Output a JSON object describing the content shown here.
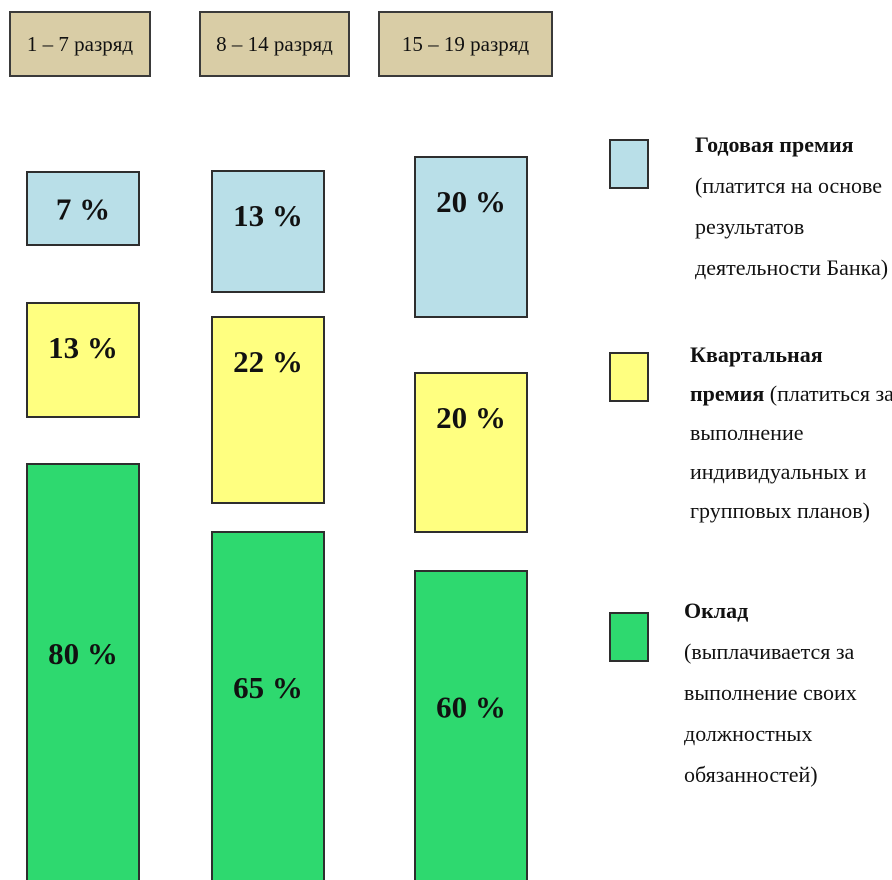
{
  "chart_data": {
    "type": "bar",
    "stacked": true,
    "categories": [
      "1 – 7 разряд",
      "8 – 14 разряд",
      "15 – 19 разряд"
    ],
    "series": [
      {
        "key": "salary",
        "name": "Оклад",
        "legend_lines": [
          [
            {
              "text": "Оклад",
              "bold": true
            }
          ],
          [
            {
              "text": "(выплачивается за",
              "bold": false
            }
          ],
          [
            {
              "text": "выполнение своих",
              "bold": false
            }
          ],
          [
            {
              "text": "должностных",
              "bold": false
            }
          ],
          [
            {
              "text": "обязанностей)",
              "bold": false
            }
          ]
        ],
        "color": "#2ed96f",
        "values": [
          80,
          65,
          60
        ],
        "labels": [
          "80 %",
          "65 %",
          "60 %"
        ]
      },
      {
        "key": "quarterly",
        "name": "Квартальная премия",
        "legend_lines": [
          [
            {
              "text": "Квартальная",
              "bold": true
            }
          ],
          [
            {
              "text": "премия",
              "bold": true
            },
            {
              "text": " (платиться за",
              "bold": false
            }
          ],
          [
            {
              "text": "выполнение",
              "bold": false
            }
          ],
          [
            {
              "text": "индивидуальных и",
              "bold": false
            }
          ],
          [
            {
              "text": "групповых планов)",
              "bold": false
            }
          ]
        ],
        "color": "#ffff80",
        "values": [
          13,
          22,
          20
        ],
        "labels": [
          "13 %",
          "22 %",
          "20 %"
        ]
      },
      {
        "key": "annual",
        "name": "Годовая премия",
        "legend_lines": [
          [
            {
              "text": "Годовая премия",
              "bold": true
            }
          ],
          [
            {
              "text": "(платится на основе",
              "bold": false
            }
          ],
          [
            {
              "text": "результатов",
              "bold": false
            }
          ],
          [
            {
              "text": "деятельности Банка)",
              "bold": false
            }
          ]
        ],
        "color": "#b9dfe8",
        "values": [
          7,
          13,
          20
        ],
        "labels": [
          "7 %",
          "13 %",
          "20 %"
        ]
      }
    ],
    "header_color": "#d9cda6",
    "legend_position": "right",
    "grid": false,
    "ylim": [
      0,
      100
    ]
  }
}
